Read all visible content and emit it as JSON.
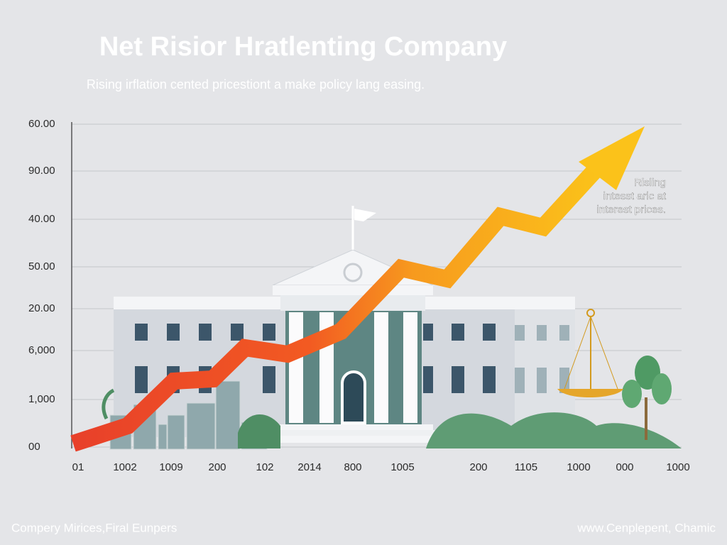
{
  "header": {
    "title": "Net Risior Hratlenting Company",
    "subtitle": "Rising irflation cented pricestiont a make policy lang easing."
  },
  "y_axis_labels": [
    "60.00",
    "90.00",
    "40.00",
    "50.00",
    "20.00",
    "6,000",
    "1,000",
    "00"
  ],
  "x_axis_labels": [
    "01",
    "1002",
    "1009",
    "200",
    "102",
    "2014",
    "800",
    "1005",
    "200",
    "1105",
    "1000",
    "000",
    "1000"
  ],
  "annotation": [
    "Risling",
    "intesst arlc at",
    "interest prices."
  ],
  "footer": {
    "left": "Compery Mirices,Firal Eunpers",
    "right": "www.Cenplepent, Chamic"
  }
}
